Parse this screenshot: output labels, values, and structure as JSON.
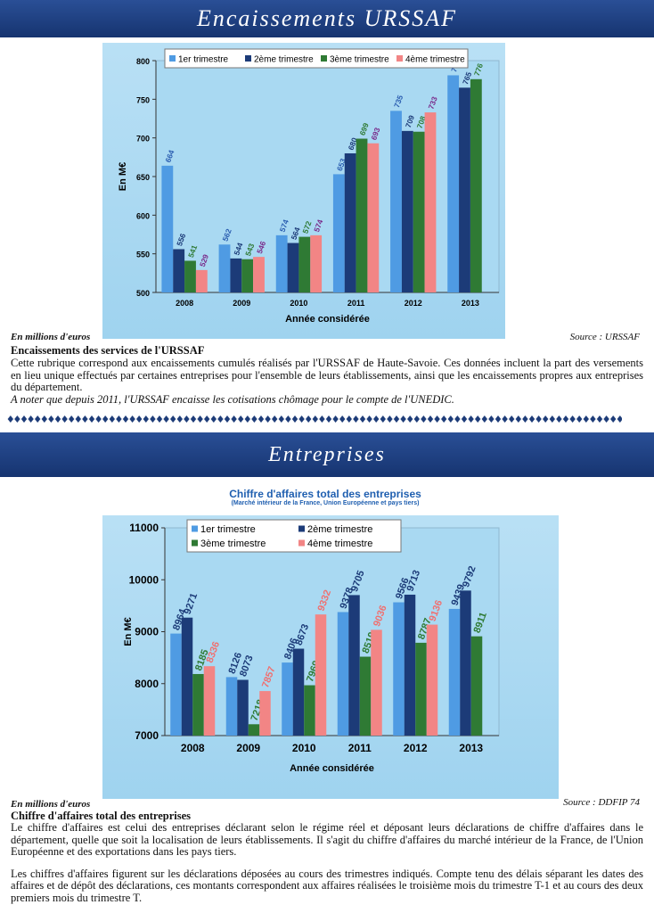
{
  "sections": [
    {
      "header": "Encaissements URSSAF",
      "unit_note": "En millions d'euros",
      "source": "Source : URSSAF",
      "heading": "Encaissements des services de l'URSSAF",
      "paragraphs": [
        "Cette rubrique correspond aux encaissements cumulés réalisés par l'URSSAF de Haute-Savoie. Ces données incluent la part des versements en lieu unique effectués par certaines entreprises pour l'ensemble de leurs établissements, ainsi que les encaissements propres aux entreprises du département."
      ],
      "note": "A noter que depuis 2011, l'URSSAF encaisse les cotisations chômage pour le compte de l'UNEDIC."
    },
    {
      "header": "Entreprises",
      "unit_note": "En millions d'euros",
      "source": "Source : DDFIP 74",
      "heading": "Chiffre d'affaires total des entreprises",
      "paragraphs": [
        "Le chiffre d'affaires est celui des entreprises déclarant selon le régime réel et déposant leurs déclarations de chiffre d'affaires dans le département, quelle que soit la localisation de leurs établissements. Il s'agit du chiffre d'affaires du marché intérieur de la France, de l'Union Européenne et des exportations dans les pays tiers.",
        "Les chiffres d'affaires figurent sur les déclarations déposées au cours des trimestres indiqués. Compte tenu des délais séparant les dates des affaires et de dépôt des déclarations, ces montants correspondent aux affaires réalisées le troisième mois du trimestre T-1 et au cours des deux premiers mois du trimestre T."
      ]
    }
  ],
  "chart_data": [
    {
      "type": "bar",
      "categories": [
        "2008",
        "2009",
        "2010",
        "2011",
        "2012",
        "2013"
      ],
      "series": [
        {
          "name": "1er trimestre",
          "color": "#4f9be3",
          "label_color": "#2a5db0",
          "values": [
            664,
            562,
            574,
            653,
            735,
            781
          ]
        },
        {
          "name": "2ème trimestre",
          "color": "#1c3b78",
          "label_color": "#1c3b78",
          "values": [
            556,
            544,
            564,
            680,
            709,
            765
          ]
        },
        {
          "name": "3ème trimestre",
          "color": "#2f7a34",
          "label_color": "#2f7a34",
          "values": [
            541,
            543,
            572,
            699,
            708,
            776
          ]
        },
        {
          "name": "4ème trimestre",
          "color": "#f28585",
          "label_color": "#7a2a8a",
          "values": [
            529,
            546,
            574,
            693,
            733,
            null
          ]
        }
      ],
      "ylim": [
        500,
        800
      ],
      "yticks": [
        500,
        550,
        600,
        650,
        700,
        750,
        800
      ],
      "ylabel": "En M€",
      "xlabel": "Année considérée",
      "grid": false,
      "legend": "top",
      "legend_columns": 4
    },
    {
      "type": "bar",
      "title": "Chiffre d'affaires total des entreprises",
      "subtitle": "(Marché intérieur de la France, Union Européenne et pays tiers)",
      "categories": [
        "2008",
        "2009",
        "2010",
        "2011",
        "2012",
        "2013"
      ],
      "series": [
        {
          "name": "1er trimestre",
          "color": "#4f9be3",
          "label_color": "#1c3b78",
          "values": [
            8964,
            8126,
            8406,
            9378,
            9566,
            9439
          ]
        },
        {
          "name": "2ème trimestre",
          "color": "#1c3b78",
          "label_color": "#1c3b78",
          "values": [
            9271,
            8073,
            8673,
            9705,
            9713,
            9792
          ]
        },
        {
          "name": "3ème trimestre",
          "color": "#2f7a34",
          "label_color": "#2f7a34",
          "values": [
            8185,
            7218,
            7969,
            8519,
            8787,
            8911
          ]
        },
        {
          "name": "4ème trimestre",
          "color": "#f28585",
          "label_color": "#f07070",
          "values": [
            8336,
            7857,
            9332,
            9036,
            9136,
            null
          ]
        }
      ],
      "ylim": [
        7000,
        11000
      ],
      "yticks": [
        7000,
        8000,
        9000,
        10000,
        11000
      ],
      "ylabel": "En M€",
      "xlabel": "Année considérée",
      "grid": false,
      "legend": "top",
      "legend_columns": 2
    }
  ]
}
